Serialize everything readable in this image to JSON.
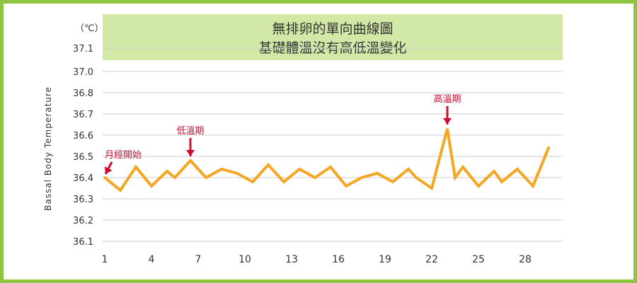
{
  "chart_data": {
    "type": "line",
    "title": "無排卵的單向曲線圖",
    "subtitle": "基礎體溫沒有高低溫變化",
    "ylabel": "Bassal Body Temperature",
    "yunit": "（℃）",
    "ylim": [
      36.1,
      37.1
    ],
    "yticks": [
      "37.1",
      "37.0",
      "36.8",
      "36.7",
      "36.6",
      "36.5",
      "36.4",
      "36.3",
      "36.2",
      "36.1"
    ],
    "xlim": [
      1,
      30
    ],
    "xticks": [
      1,
      4,
      7,
      10,
      13,
      16,
      19,
      22,
      25,
      28
    ],
    "grid": true,
    "series": [
      {
        "color": "#f5a623",
        "x": [
          1,
          2,
          3,
          4,
          5,
          5.5,
          6.5,
          7.5,
          8.5,
          9.5,
          10.5,
          11.5,
          12.5,
          13.5,
          14.5,
          15.5,
          16.5,
          17.5,
          18.5,
          19.5,
          20.5,
          21,
          22,
          23,
          23.5,
          24,
          25,
          26,
          26.5,
          27.5,
          28.5,
          29.5
        ],
        "y": [
          36.4,
          36.34,
          36.45,
          36.36,
          36.43,
          36.4,
          36.48,
          36.4,
          36.44,
          36.42,
          36.38,
          36.46,
          36.38,
          36.44,
          36.4,
          36.45,
          36.36,
          36.4,
          36.42,
          36.38,
          36.44,
          36.4,
          36.35,
          36.63,
          36.4,
          36.45,
          36.36,
          36.43,
          36.38,
          36.44,
          36.36,
          36.54
        ]
      }
    ],
    "annotations": [
      {
        "text": "月經開始",
        "x": 1,
        "y": 36.4
      },
      {
        "text": "低溫期",
        "x": 6.5,
        "y": 36.48
      },
      {
        "text": "高溫期",
        "x": 23,
        "y": 36.63
      }
    ],
    "colors": {
      "border": "#8cc63f",
      "title_bg": "#d2e8a6",
      "line": "#f5a623",
      "annotation": "#c8102e",
      "grid": "#cccccc"
    }
  }
}
